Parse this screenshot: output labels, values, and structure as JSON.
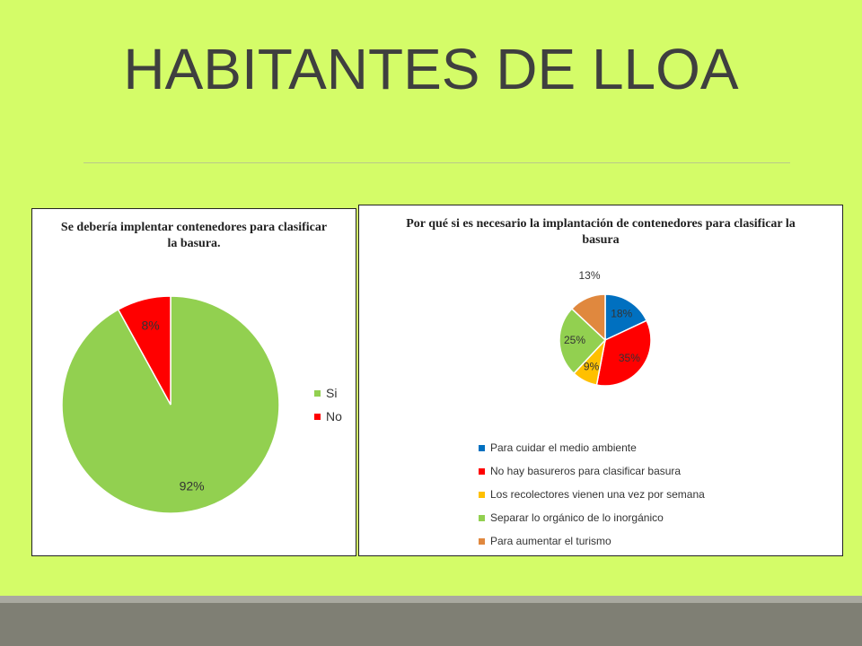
{
  "slide": {
    "title": "HABITANTES DE LLOA",
    "background": "#d4fc68"
  },
  "chart_data": [
    {
      "type": "pie",
      "title": "Se debería implentar contenedores para clasificar la basura.",
      "categories": [
        "Si",
        "No"
      ],
      "values": [
        92,
        8
      ],
      "data_labels": [
        "92%",
        "8%"
      ],
      "colors": [
        "#92d050",
        "#ff0000"
      ],
      "legend_position": "right"
    },
    {
      "type": "pie",
      "title": "Por qué si es necesario la implantación de contenedores para clasificar la basura",
      "categories": [
        "Para cuidar el medio ambiente",
        "No hay basureros para clasificar basura",
        "Los recolectores vienen una vez por semana",
        "Separar lo orgánico de lo inorgánico",
        "Para aumentar el turismo"
      ],
      "values": [
        18,
        35,
        9,
        25,
        13
      ],
      "data_labels": [
        "18%",
        "35%",
        "9%",
        "25%",
        "13%"
      ],
      "colors": [
        "#0070c0",
        "#ff0000",
        "#ffc000",
        "#92d050",
        "#e0883e"
      ],
      "legend_position": "bottom"
    }
  ]
}
